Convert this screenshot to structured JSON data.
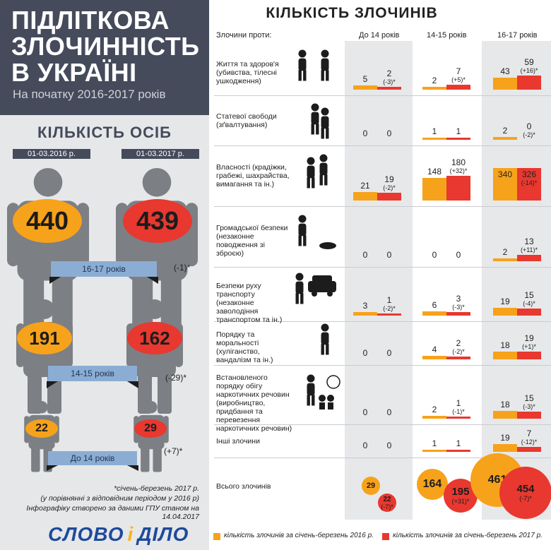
{
  "left": {
    "title": "ПІДЛІТКОВА ЗЛОЧИННІСТЬ В УКРАЇНІ",
    "subtitle": "На початку 2016-2017 років",
    "heading": "КІЛЬКІСТЬ ОСІБ",
    "date_2016": "01-03.2016 р.",
    "date_2017": "01-03.2017 р.",
    "groups": [
      {
        "label": "16-17 років",
        "v2016": "440",
        "v2017": "439",
        "diff": "(-1)*"
      },
      {
        "label": "14-15 років",
        "v2016": "191",
        "v2017": "162",
        "diff": "(-29)*"
      },
      {
        "label": "До 14 років",
        "v2016": "22",
        "v2017": "29",
        "diff": "(+7)*"
      }
    ],
    "footnote1": "*січень-березень 2017 р.",
    "footnote2": "(у порівнянні з відповідним періодом у 2016 р)",
    "footnote3": "Інфографіку створено за даними ГПУ станом на 14.04.2017",
    "logo_a": "СЛОВО",
    "logo_b": "і",
    "logo_c": "ДІЛО"
  },
  "right": {
    "title": "КІЛЬКІСТЬ ЗЛОЧИНІВ",
    "h_against": "Злочини проти:",
    "h_u14": "До 14 років",
    "h_1415": "14-15 років",
    "h_1617": "16-17 років",
    "legend_2016": "кількість злочинів за січень-березень 2016 р.",
    "legend_2017": "кількість злочинів за січень-березень 2017 р."
  },
  "colors": {
    "y2016": "#f7a21b",
    "y2017": "#e8382f",
    "dark": "#454b5b",
    "band": "#8cadd3",
    "figure": "#7c7f84"
  },
  "chart_data": {
    "type": "bar",
    "title": "КІЛЬКІСТЬ ЗЛОЧИНІВ",
    "categories": [
      "Життя та здоров'я (убивства, тілесні ушкодження)",
      "Статевої свободи (зґвалтування)",
      "Власності (крадіжки, грабежі, шахрайства, вимагання та ін.)",
      "Громадської безпеки (незаконне поводження зі зброєю)",
      "Безпеки руху транспорту (незаконне заволодіння транспортом та ін.)",
      "Порядку та моральності (хуліганство, вандалізм та ін.)",
      "Встановленого порядку обігу наркотичних речовин (виробництво, придбання та перевезення наркотичних речовин)",
      "Інші злочини"
    ],
    "groups": [
      "До 14 років",
      "14-15 років",
      "16-17 років"
    ],
    "series": [
      {
        "name": "кількість злочинів за січень-березень 2016 р.",
        "values": [
          [
            5,
            2,
            43
          ],
          [
            0,
            1,
            2
          ],
          [
            21,
            148,
            340
          ],
          [
            0,
            0,
            2
          ],
          [
            3,
            6,
            19
          ],
          [
            0,
            4,
            18
          ],
          [
            0,
            2,
            18
          ],
          [
            0,
            1,
            19
          ]
        ]
      },
      {
        "name": "кількість злочинів за січень-березень 2017 р.",
        "values": [
          [
            2,
            7,
            59
          ],
          [
            0,
            1,
            0
          ],
          [
            19,
            180,
            326
          ],
          [
            0,
            0,
            13
          ],
          [
            1,
            3,
            15
          ],
          [
            0,
            2,
            19
          ],
          [
            0,
            1,
            15
          ],
          [
            0,
            1,
            7
          ]
        ]
      }
    ],
    "changes": [
      [
        "(-3)*",
        "(+5)*",
        "(+16)*"
      ],
      [
        "",
        "",
        "(-2)*"
      ],
      [
        "(-2)*",
        "(+32)*",
        "(-14)*"
      ],
      [
        "",
        "",
        "(+11)*"
      ],
      [
        "(-2)*",
        "(-3)*",
        "(-4)*"
      ],
      [
        "",
        "(-2)*",
        "(+1)*"
      ],
      [
        "",
        "(-1)*",
        "(-3)*"
      ],
      [
        "",
        "",
        "(-12)*"
      ]
    ],
    "totals": {
      "label": "Всього злочинів",
      "v2016": [
        29,
        164,
        461
      ],
      "v2017": [
        22,
        195,
        454
      ],
      "changes": [
        "(-7)*",
        "(+31)*",
        "(-7)*"
      ]
    }
  }
}
